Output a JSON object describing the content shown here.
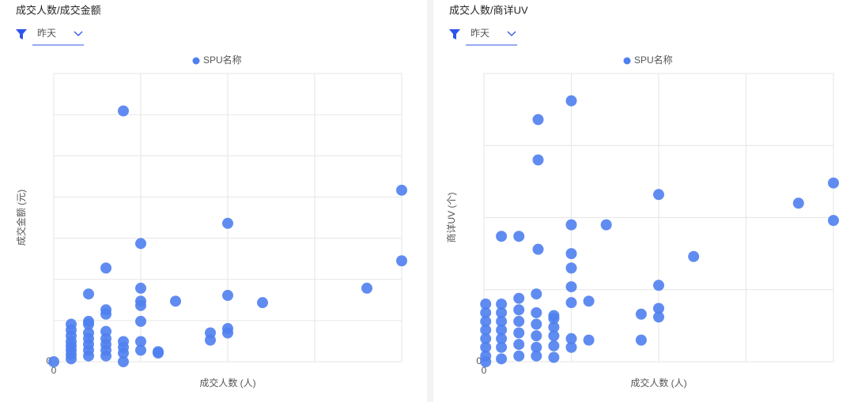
{
  "chart_data": [
    {
      "type": "scatter",
      "title": "成交人数/成交金额",
      "filter": "昨天",
      "xlabel": "成交人数 (人)",
      "ylabel": "成交金额 (元)",
      "xlim": [
        0,
        100
      ],
      "ylim": [
        0,
        100
      ],
      "xticks": [
        0
      ],
      "yticks": [
        0
      ],
      "grid": true,
      "series": [
        {
          "name": "SPU名称",
          "color": "#4f7ff0",
          "x": [
            0,
            20,
            100,
            50,
            100,
            25,
            15,
            10,
            25,
            25,
            25,
            35,
            50,
            60,
            90,
            15,
            15,
            10,
            25,
            45,
            45,
            50,
            50,
            5,
            5,
            5,
            5,
            5,
            5,
            5,
            5,
            10,
            10,
            10,
            10,
            10,
            10,
            15,
            15,
            15,
            15,
            15,
            20,
            20,
            20,
            20,
            25,
            25,
            30,
            30
          ],
          "values": [
            0,
            87,
            59.5,
            48,
            35,
            41,
            32.5,
            23.5,
            25.5,
            21,
            19.5,
            21,
            23,
            20.5,
            25.5,
            18,
            16.5,
            14,
            14,
            10,
            7.5,
            11.5,
            10,
            13,
            11,
            9,
            7,
            5.5,
            4,
            2.5,
            1,
            13,
            10,
            8,
            6,
            4,
            2,
            10.5,
            8,
            6,
            4,
            2,
            7,
            5,
            3,
            0,
            7,
            4,
            3.5,
            3
          ]
        }
      ]
    },
    {
      "type": "scatter",
      "title": "成交人数/商详UV",
      "filter": "昨天",
      "xlabel": "成交人数 (人)",
      "ylabel": "商详UV (个)",
      "xlim": [
        0,
        100
      ],
      "ylim": [
        0,
        100
      ],
      "xticks": [
        0
      ],
      "yticks": [
        0
      ],
      "grid": true,
      "series": [
        {
          "name": "SPU名称",
          "color": "#4f7ff0",
          "x": [
            25,
            15.5,
            15.5,
            100,
            50,
            90,
            100,
            25,
            35,
            5,
            10,
            15.5,
            25,
            60,
            25,
            25,
            50,
            15,
            10,
            30,
            25,
            50,
            45,
            50,
            45,
            30,
            25,
            25,
            20,
            20,
            20,
            20,
            20,
            20,
            0.5,
            0.5,
            0.5,
            0.5,
            0.5,
            0.5,
            0.5,
            0.5,
            5,
            5,
            5,
            5,
            5,
            5,
            5,
            10,
            10,
            10,
            10,
            10,
            15,
            15,
            15,
            15,
            15
          ],
          "values": [
            90.5,
            84,
            70,
            62,
            58,
            55,
            49,
            47.5,
            47.5,
            43.5,
            43.5,
            39,
            37.5,
            36.5,
            32.5,
            26,
            26.5,
            23.5,
            22,
            21,
            20.5,
            18.5,
            16.5,
            15.5,
            7.5,
            7.5,
            8,
            5,
            16,
            15,
            12,
            9,
            5.5,
            1.5,
            20,
            17,
            14,
            11,
            8,
            5,
            2,
            0,
            20,
            17,
            14,
            11,
            8,
            5,
            1,
            18,
            14,
            10,
            6,
            2,
            17,
            13,
            9,
            5,
            2
          ]
        }
      ]
    }
  ]
}
